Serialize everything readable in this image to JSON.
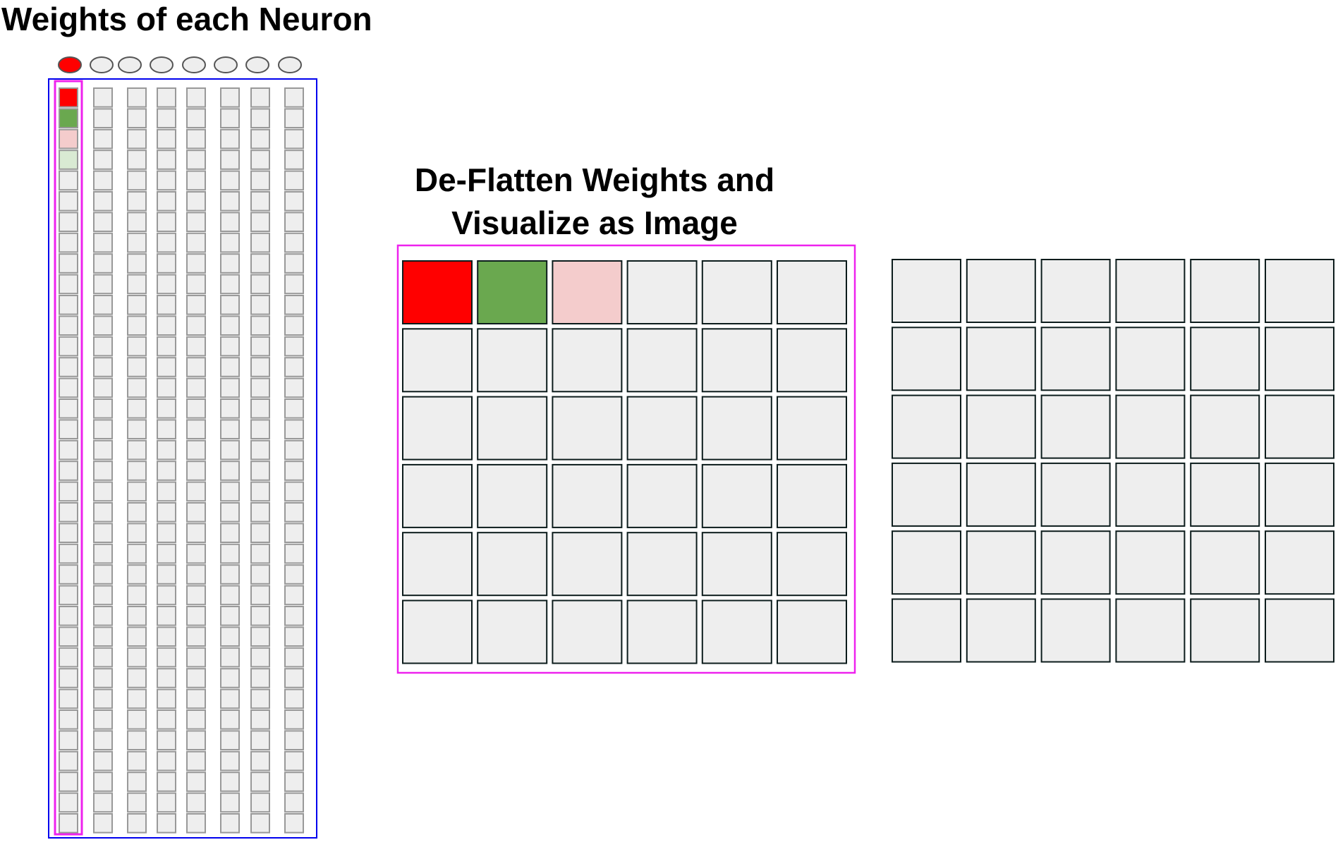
{
  "title_left": "Weights of each Neuron",
  "title_center_line1": "De-Flatten Weights and",
  "title_center_line2": "Visualize as Image",
  "neurons": {
    "count": 8,
    "active_index": 0,
    "active_color": "#ff0000",
    "inactive_color": "#eeeeee"
  },
  "weight_columns": {
    "count": 8,
    "cells_per_column": 36,
    "default_color": "#eeeeee",
    "first_column_colors": [
      "#ff0000",
      "#6aa84f",
      "#f4cccc",
      "#d9ead3"
    ]
  },
  "image_grid_a": {
    "rows": 6,
    "cols": 6,
    "default_color": "#eeeeee",
    "top_row_colors": [
      "#ff0000",
      "#6aa84f",
      "#f4cccc"
    ]
  },
  "image_grid_b": {
    "rows": 6,
    "cols": 6,
    "default_color": "#eeeeee"
  },
  "colors": {
    "neuron_frame": "#0000ee",
    "highlight_frame": "#ee22ee",
    "cell_border_light": "#999999",
    "cell_border_dark": "#0c1c1c"
  }
}
